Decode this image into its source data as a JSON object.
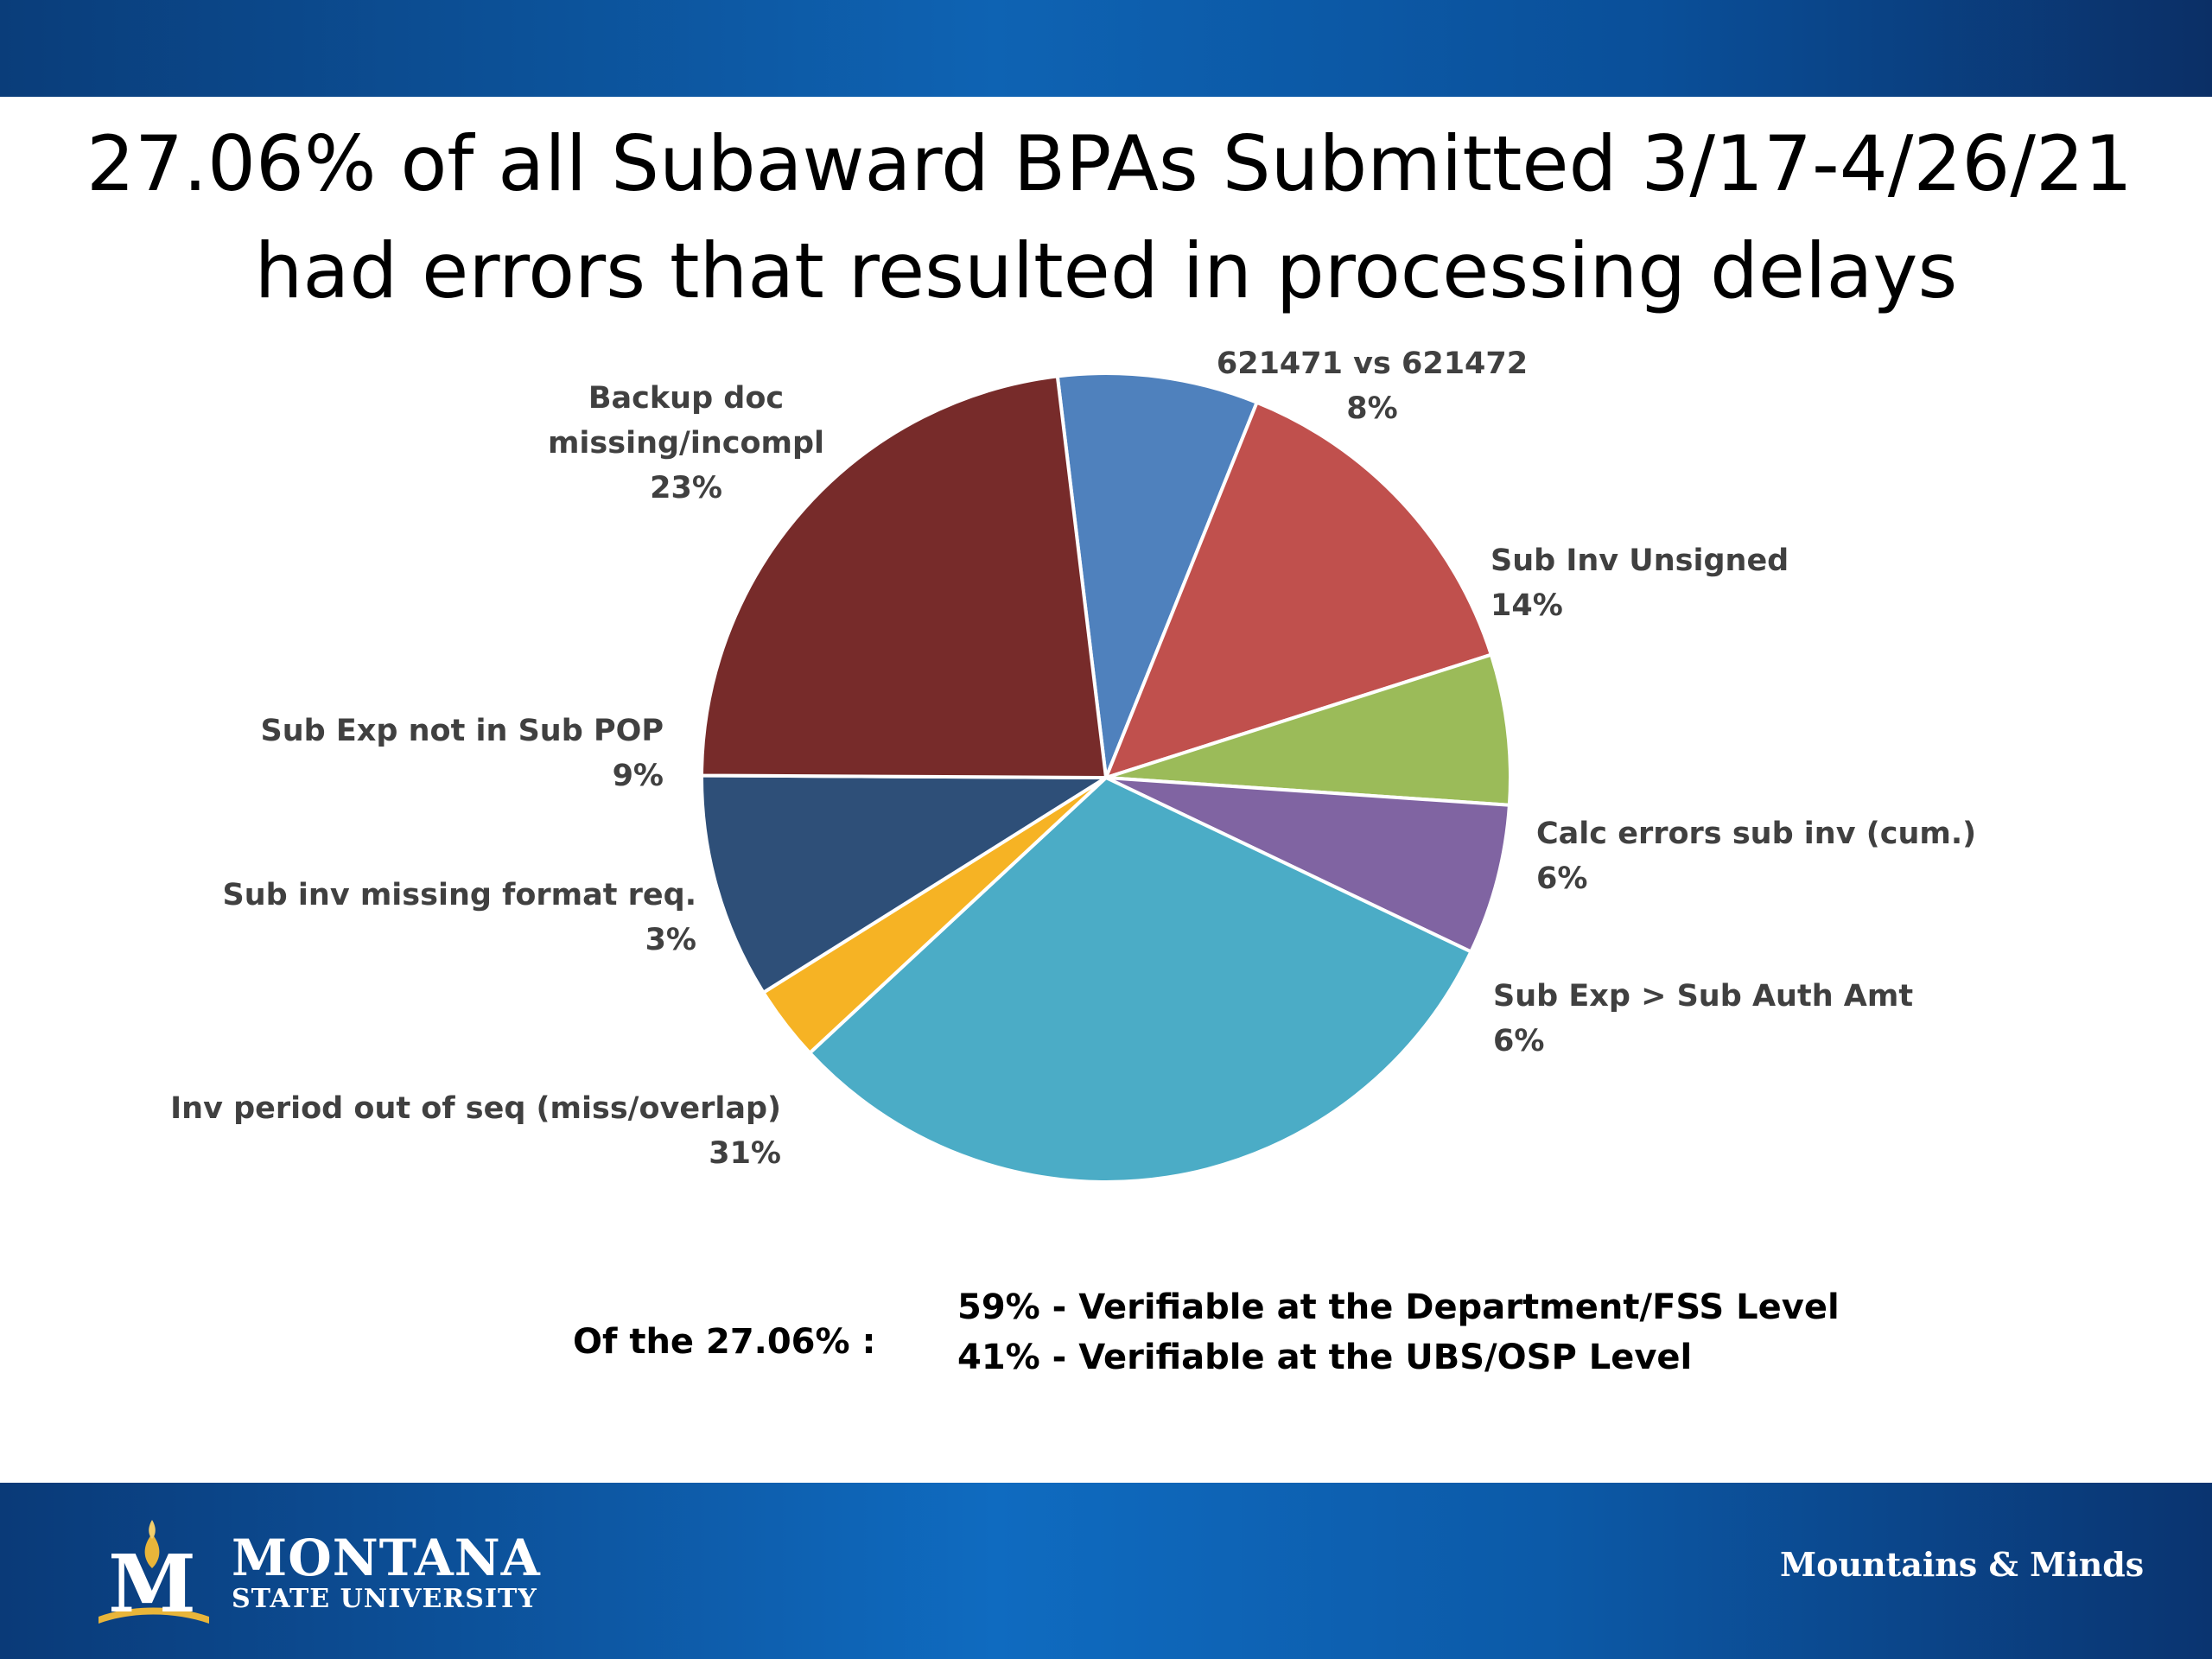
{
  "slide": {
    "title_line1": "27.06% of all Subaward BPAs Submitted 3/17-4/26/21",
    "title_line2": "had errors that resulted in processing delays"
  },
  "chart_data": {
    "type": "pie",
    "start_angle_deg": -6.9,
    "slices": [
      {
        "name": "621471 vs 621472",
        "value": 8,
        "color": "#4F81BD"
      },
      {
        "name": "Sub Inv Unsigned",
        "value": 14,
        "color": "#C0504D"
      },
      {
        "name": "Calc errors sub inv (cum.)",
        "value": 6,
        "color": "#9BBB59"
      },
      {
        "name": "Sub Exp > Sub Auth Amt",
        "value": 6,
        "color": "#8064A2"
      },
      {
        "name": "Inv period out of seq (miss/overlap)",
        "value": 31,
        "color": "#4BACC6"
      },
      {
        "name": "Sub inv missing format req.",
        "value": 3,
        "color": "#F6B324"
      },
      {
        "name": "Sub Exp not in Sub POP",
        "value": 9,
        "color": "#2E4F78"
      },
      {
        "name": "Backup doc missing/incompl",
        "value": 23,
        "color": "#772B2A"
      }
    ],
    "labels": [
      {
        "lines": [
          "621471 vs 621472",
          "8%"
        ],
        "anchor": "middle"
      },
      {
        "lines": [
          "Sub Inv Unsigned",
          "14%"
        ],
        "anchor": "start"
      },
      {
        "lines": [
          "Calc errors sub inv (cum.)",
          "6%"
        ],
        "anchor": "start"
      },
      {
        "lines": [
          "Sub Exp > Sub Auth Amt",
          "6%"
        ],
        "anchor": "start"
      },
      {
        "lines": [
          "Inv period out of seq (miss/overlap)",
          "31%"
        ],
        "anchor": "end"
      },
      {
        "lines": [
          "Sub inv missing format req.",
          "3%"
        ],
        "anchor": "end"
      },
      {
        "lines": [
          "Sub Exp not in Sub POP",
          "9%"
        ],
        "anchor": "end"
      },
      {
        "lines": [
          "Backup doc",
          "missing/incompl",
          "23%"
        ],
        "anchor": "middle"
      }
    ]
  },
  "summary": {
    "prefix": "Of the 27.06% :",
    "line1": "59%  -  Verifiable at the Department/FSS Level",
    "line2": "41%  -  Verifiable at the UBS/OSP Level"
  },
  "footer": {
    "logo_letter": "M",
    "logo_line1": "MONTANA",
    "logo_line2": "STATE UNIVERSITY",
    "tagline": "Mountains & Minds"
  },
  "colors": {
    "band_blue": "#0E63B3",
    "logo_gold": "#E8B53A"
  }
}
